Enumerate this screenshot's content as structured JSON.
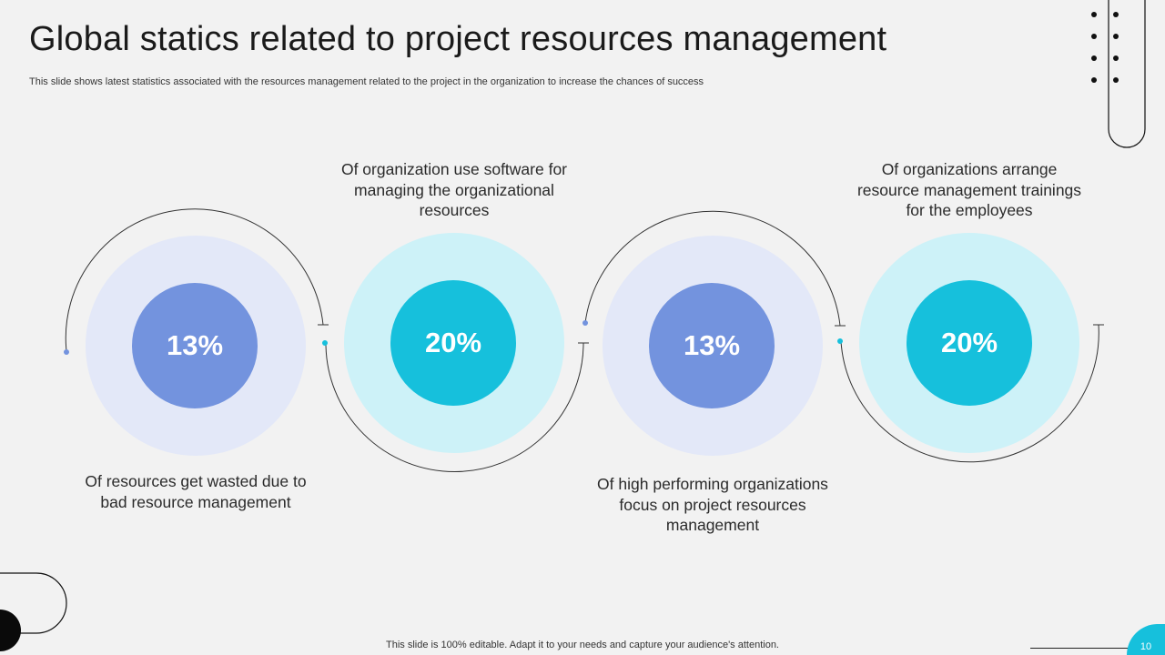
{
  "header": {
    "title": "Global statics related to project resources management",
    "subtitle": "This slide shows latest statistics associated with the resources management related to the project in the organization to increase the chances of success"
  },
  "stats": [
    {
      "value": "13%",
      "description": "Of resources get wasted due to bad resource management",
      "color": "#7393de"
    },
    {
      "value": "20%",
      "description": "Of organization use software for managing the organizational resources",
      "color": "#16c0dc"
    },
    {
      "value": "13%",
      "description": "Of high performing organizations focus on project resources management",
      "color": "#7393de"
    },
    {
      "value": "20%",
      "description": "Of organizations arrange resource management trainings for the employees",
      "color": "#16c0dc"
    }
  ],
  "footer": {
    "note": "This slide is 100% editable. Adapt it to your needs and capture your audience's attention.",
    "page_number": "10"
  },
  "colors": {
    "blue": "#7393de",
    "cyan": "#16c0dc",
    "blue_light": "#e3e8f8",
    "cyan_light": "#cdf2f8",
    "background": "#f2f2f2"
  }
}
